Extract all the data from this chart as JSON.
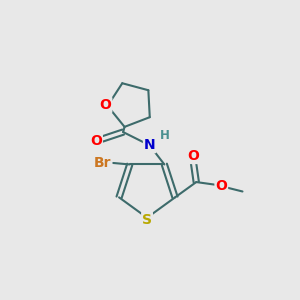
{
  "background_color": "#e8e8e8",
  "bond_color": "#3d6b6b",
  "bond_width": 1.5,
  "atom_colors": {
    "O": "#ff0000",
    "N": "#0000cd",
    "S": "#b8a800",
    "Br": "#cc7722",
    "H": "#4a9090",
    "C": "#3d6b6b"
  },
  "font_size_large": 10,
  "font_size_small": 8.5,
  "figsize": [
    3.0,
    3.0
  ],
  "dpi": 100
}
